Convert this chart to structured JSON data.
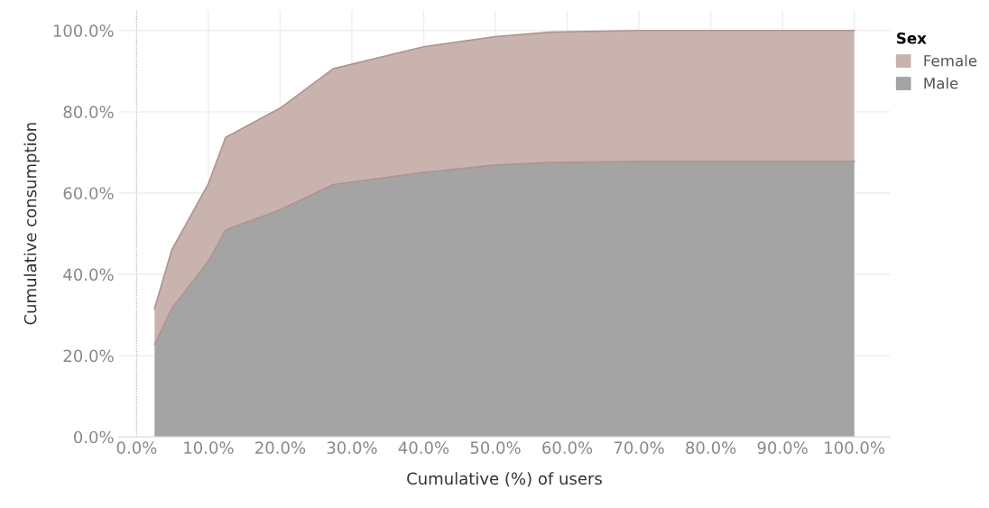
{
  "chart_data": {
    "type": "area",
    "stacked": true,
    "xlabel": "Cumulative (%) of users",
    "ylabel": "Cumulative consumption",
    "legend_title": "Sex",
    "legend": "top right",
    "x": [
      2.5,
      4.9,
      10,
      12.4,
      20,
      27.4,
      40,
      50,
      57.7,
      70,
      100
    ],
    "series": [
      {
        "name": "Male",
        "color": "#a4a4a4",
        "values": [
          22.8,
          31.6,
          43.2,
          50.9,
          55.9,
          62.1,
          65.1,
          66.9,
          67.5,
          67.8,
          67.8
        ]
      },
      {
        "name": "Female",
        "color": "#c9b3ae",
        "values": [
          8.8,
          14.4,
          19.1,
          22.8,
          25.0,
          28.5,
          30.9,
          31.6,
          32.1,
          32.2,
          32.2
        ]
      }
    ],
    "xlim": [
      -2.5,
      105
    ],
    "ylim": [
      0,
      105
    ],
    "xticks": [
      {
        "value": 0,
        "label": "0.0%"
      },
      {
        "value": 10,
        "label": "10.0%"
      },
      {
        "value": 20,
        "label": "20.0%"
      },
      {
        "value": 30,
        "label": "30.0%"
      },
      {
        "value": 40,
        "label": "40.0%"
      },
      {
        "value": 50,
        "label": "50.0%"
      },
      {
        "value": 60,
        "label": "60.0%"
      },
      {
        "value": 70,
        "label": "70.0%"
      },
      {
        "value": 80,
        "label": "80.0%"
      },
      {
        "value": 90,
        "label": "90.0%"
      },
      {
        "value": 100,
        "label": "100.0%"
      }
    ],
    "yticks": [
      {
        "value": 0,
        "label": "0.0%"
      },
      {
        "value": 20,
        "label": "20.0%"
      },
      {
        "value": 40,
        "label": "40.0%"
      },
      {
        "value": 60,
        "label": "60.0%"
      },
      {
        "value": 80,
        "label": "80.0%"
      },
      {
        "value": 100,
        "label": "100.0%"
      }
    ],
    "ref_lines": [
      {
        "axis": "x",
        "value": 0,
        "color": "#bbbbbb",
        "line_style": "dotted"
      }
    ],
    "grid": true
  }
}
